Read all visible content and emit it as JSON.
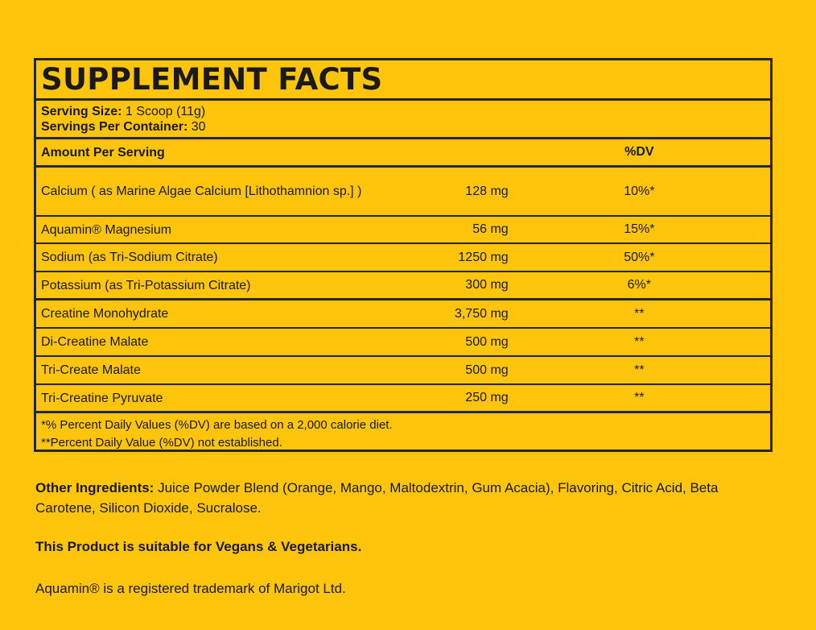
{
  "facts": {
    "title": "SUPPLEMENT FACTS",
    "serving_size_label": "Serving Size:",
    "serving_size_value": " 1 Scoop (11g)",
    "servings_label": "Servings Per Container:",
    "servings_value": " 30",
    "header_amount": "Amount Per Serving",
    "header_dv": "%DV",
    "rows": [
      {
        "name": "Calcium ( as Marine Algae Calcium [Lithothamnion sp.] )",
        "amount": "128 mg",
        "dv": "10%*"
      },
      {
        "name": "Aquamin® Magnesium",
        "amount": "56 mg",
        "dv": "15%*"
      },
      {
        "name": "Sodium (as Tri-Sodium Citrate)",
        "amount": "1250 mg",
        "dv": "50%*"
      },
      {
        "name": "Potassium (as Tri-Potassium Citrate)",
        "amount": "300 mg",
        "dv": "6%*"
      },
      {
        "name": "Creatine Monohydrate",
        "amount": "3,750 mg",
        "dv": "**"
      },
      {
        "name": "Di-Creatine Malate",
        "amount": "500 mg",
        "dv": "**"
      },
      {
        "name": "Tri-Create Malate",
        "amount": "500 mg",
        "dv": "**"
      },
      {
        "name": "Tri-Creatine Pyruvate",
        "amount": "250 mg",
        "dv": "**"
      }
    ],
    "footnote_1": "*% Percent Daily Values (%DV) are based on a 2,000 calorie diet.",
    "footnote_2": "**Percent Daily Value (%DV) not established."
  },
  "other_ingredients": {
    "label": "Other Ingredients:",
    "text": " Juice Powder Blend (Orange, Mango, Maltodextrin, Gum Acacia), Flavoring, Citric Acid, Beta Carotene, Silicon Dioxide, Sucralose."
  },
  "vegan_note": "This Product is suitable for Vegans & Vegetarians.",
  "trademark_note": "Aquamin® is a registered trademark of Marigot Ltd.",
  "colors": {
    "background": "#ffc40c",
    "border": "#26262c",
    "text": "#1a1a1a"
  }
}
